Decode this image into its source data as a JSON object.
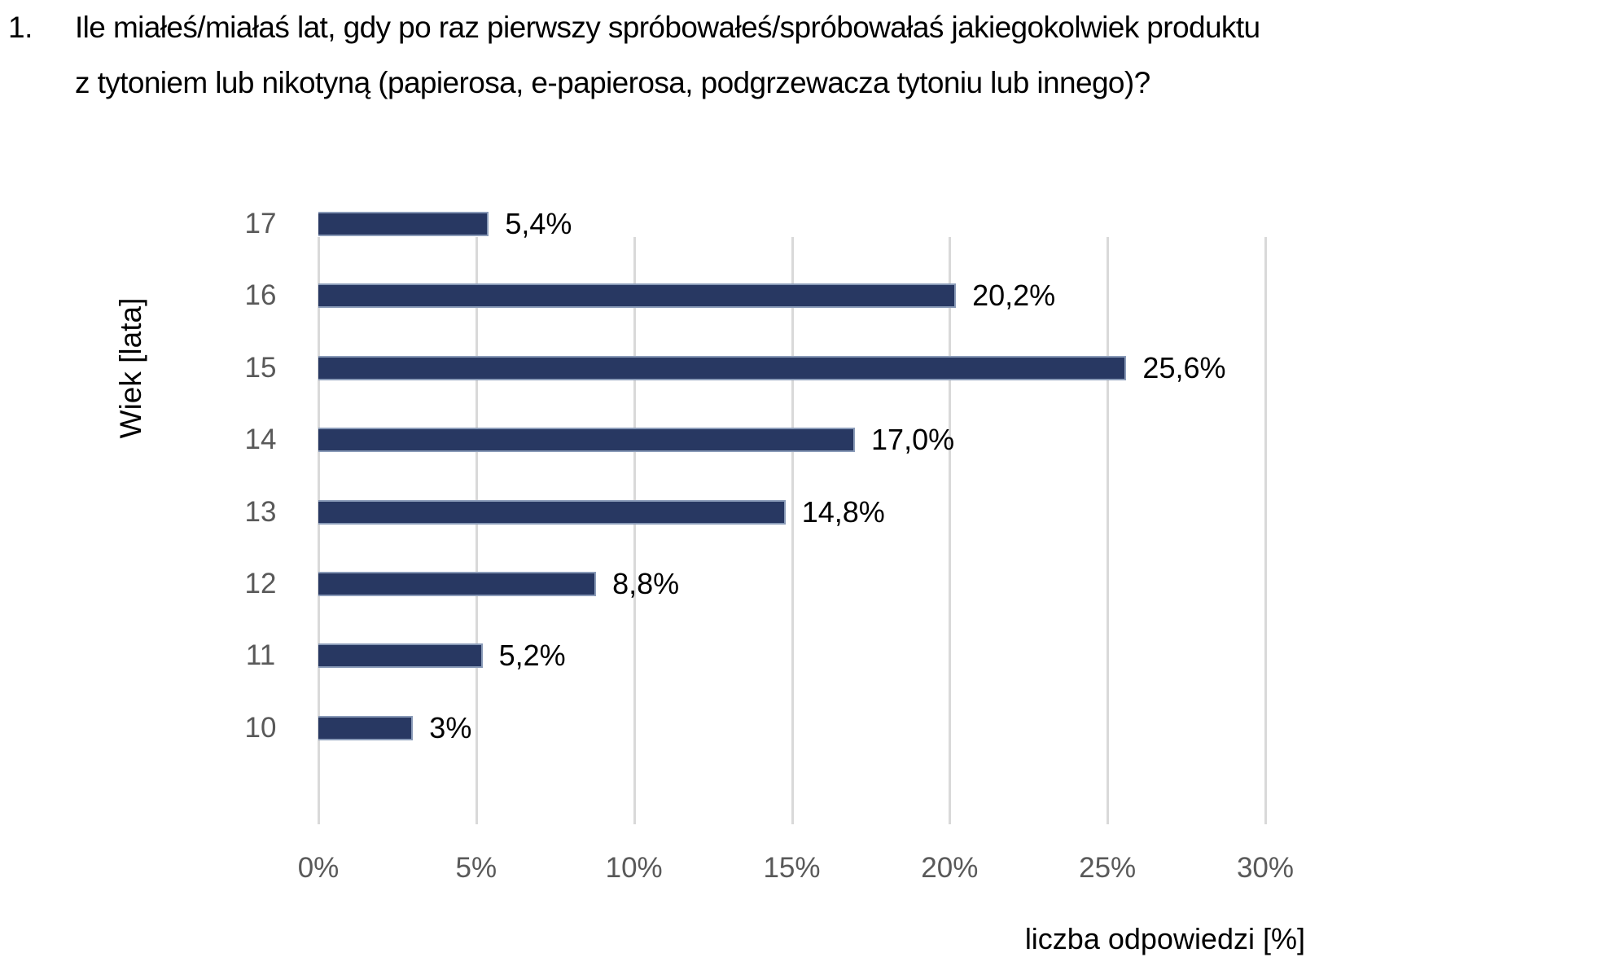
{
  "question": {
    "number": "1.",
    "line1": "Ile miałeś/miałaś lat, gdy po raz pierwszy spróbowałeś/spróbowałaś jakiegokolwiek produktu",
    "line2": "z tytoniem lub nikotyną (papierosa, e-papierosa, podgrzewacza tytoniu lub innego)?"
  },
  "chart": {
    "ylabel": "Wiek [lata]",
    "xlabel": "liczba odpowiedzi [%]",
    "bars": [
      {
        "category": "17",
        "value": 5.4,
        "label": "5,4%"
      },
      {
        "category": "16",
        "value": 20.2,
        "label": "20,2%"
      },
      {
        "category": "15",
        "value": 25.6,
        "label": "25,6%"
      },
      {
        "category": "14",
        "value": 17.0,
        "label": "17,0%"
      },
      {
        "category": "13",
        "value": 14.8,
        "label": "14,8%"
      },
      {
        "category": "12",
        "value": 8.8,
        "label": "8,8%"
      },
      {
        "category": "11",
        "value": 5.2,
        "label": "5,2%"
      },
      {
        "category": "10",
        "value": 3.0,
        "label": "3%"
      }
    ],
    "x_ticks": [
      "0%",
      "5%",
      "10%",
      "15%",
      "20%",
      "25%",
      "30%"
    ],
    "colors": {
      "bar_fill": "#283862",
      "bar_outline": "#8a9bb8",
      "gridline": "#d9d9d9",
      "tick_text": "#595959"
    }
  },
  "chart_data": {
    "type": "bar",
    "orientation": "horizontal",
    "title": "Ile miałeś/miałaś lat, gdy po raz pierwszy spróbowałeś/spróbowałaś jakiegokolwiek produktu z tytoniem lub nikotyną (papierosa, e-papierosa, podgrzewacza tytoniu lub innego)?",
    "categories": [
      "17",
      "16",
      "15",
      "14",
      "13",
      "12",
      "11",
      "10"
    ],
    "values": [
      5.4,
      20.2,
      25.6,
      17.0,
      14.8,
      8.8,
      5.2,
      3.0
    ],
    "data_labels": [
      "5,4%",
      "20,2%",
      "25,6%",
      "17,0%",
      "14,8%",
      "8,8%",
      "5,2%",
      "3%"
    ],
    "xlabel": "liczba odpowiedzi [%]",
    "ylabel": "Wiek [lata]",
    "x_tick_labels": [
      "0%",
      "5%",
      "10%",
      "15%",
      "20%",
      "25%",
      "30%"
    ],
    "xlim": [
      0,
      30
    ],
    "grid": {
      "vertical": true,
      "horizontal": false
    },
    "legend": null
  }
}
